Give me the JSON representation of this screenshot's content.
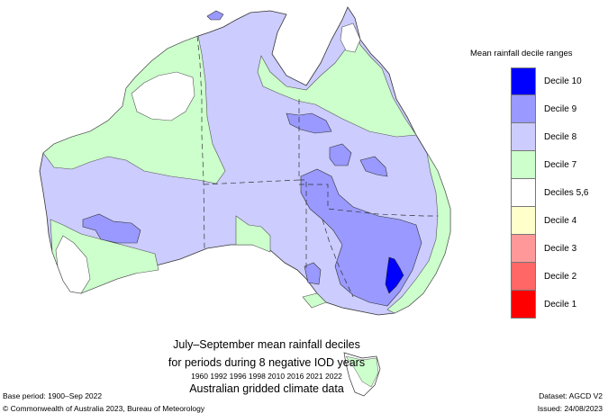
{
  "caption": {
    "line1": "July–September mean rainfall deciles",
    "line2": "for periods during 8 negative IOD years",
    "years": "1960 1992 1996 1998 2010 2016 2021 2022",
    "line4": "Australian gridded climate data"
  },
  "footer": {
    "base_period": "Base period: 1900–Sep 2022",
    "copyright": "© Commonwealth of Australia 2023, Bureau of Meteorology",
    "dataset": "Dataset: AGCD V2",
    "issued": "Issued: 24/08/2023"
  },
  "legend": {
    "title": "Mean rainfall decile ranges",
    "items": [
      {
        "label": "Decile 10",
        "color": "#0000ff"
      },
      {
        "label": "Decile 9",
        "color": "#9999ff"
      },
      {
        "label": "Decile 8",
        "color": "#ccccff"
      },
      {
        "label": "Decile 7",
        "color": "#ccffcc"
      },
      {
        "label": "Deciles 5,6",
        "color": "#ffffff"
      },
      {
        "label": "Decile 4",
        "color": "#ffffcc"
      },
      {
        "label": "Decile 3",
        "color": "#ff9999"
      },
      {
        "label": "Decile 2",
        "color": "#ff6666"
      },
      {
        "label": "Decile 1",
        "color": "#ff0000"
      }
    ]
  },
  "map": {
    "region": "Australia",
    "colors": {
      "decile10": "#0000ff",
      "decile9": "#9999ff",
      "decile8": "#ccccff",
      "decile7": "#ccffcc",
      "decile5_6": "#ffffff",
      "outline": "#333333"
    }
  }
}
